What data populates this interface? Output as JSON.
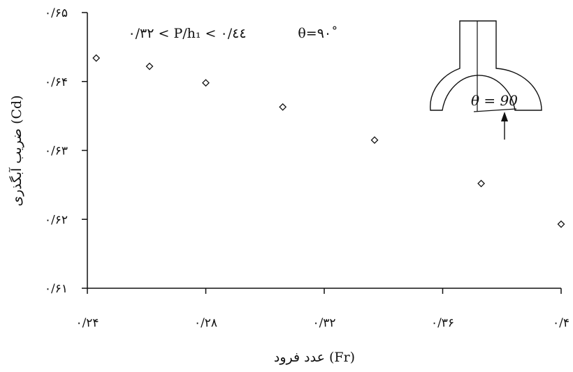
{
  "chart_data": {
    "type": "scatter",
    "title": "",
    "xlabel": "عدد فرود (Fr)",
    "ylabel": "ضریب آبگذری (Cd)",
    "xlim": [
      0.24,
      0.4
    ],
    "ylim": [
      0.61,
      0.65
    ],
    "x_ticks": [
      0.24,
      0.28,
      0.32,
      0.36,
      0.4
    ],
    "y_ticks": [
      0.61,
      0.62,
      0.63,
      0.64,
      0.65
    ],
    "x_tick_labels": [
      "۰/۲۴",
      "۰/۲۸",
      "۰/۳۲",
      "۰/۳۶",
      "۰/۴"
    ],
    "y_tick_labels": [
      "۰/۶۱",
      "۰/۶۲",
      "۰/۶۳",
      "۰/۶۴",
      "۰/۶۵"
    ],
    "grid": false,
    "marker": "diamond-open",
    "series": [
      {
        "points": [
          {
            "x": 0.243,
            "y": 0.6434
          },
          {
            "x": 0.261,
            "y": 0.6422
          },
          {
            "x": 0.28,
            "y": 0.6398
          },
          {
            "x": 0.306,
            "y": 0.6363
          },
          {
            "x": 0.337,
            "y": 0.6315
          },
          {
            "x": 0.373,
            "y": 0.6252
          },
          {
            "x": 0.4,
            "y": 0.6193
          }
        ]
      }
    ],
    "annotations": {
      "range_text": "۰/۳۲ < P/h₁ < ۰/٤٤",
      "angle_text": "θ=۹۰˚",
      "inset_label": "θ = 90"
    }
  }
}
